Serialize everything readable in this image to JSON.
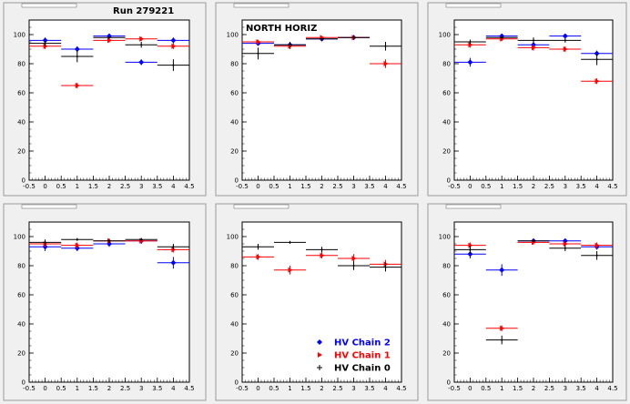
{
  "chart_data": [
    {
      "type": "scatter",
      "title": "",
      "annotation": "Run 279221",
      "xlim": [
        -0.5,
        4.5
      ],
      "ylim": [
        0,
        110
      ],
      "xticks": [
        "-0.5",
        "0",
        "0.5",
        "1",
        "1.5",
        "2",
        "2.5",
        "3",
        "3.5",
        "4",
        "4.5"
      ],
      "yticks": [
        "0",
        "20",
        "40",
        "60",
        "80",
        "100"
      ],
      "series": [
        {
          "key": "chain2",
          "values": [
            {
              "x": 0,
              "y": 96,
              "err": 2
            },
            {
              "x": 1,
              "y": 90,
              "err": 2
            },
            {
              "x": 2,
              "y": 99,
              "err": 1.5
            },
            {
              "x": 3,
              "y": 81,
              "err": 2
            },
            {
              "x": 4,
              "y": 96,
              "err": 2
            }
          ]
        },
        {
          "key": "chain1",
          "values": [
            {
              "x": 0,
              "y": 92,
              "err": 2
            },
            {
              "x": 1,
              "y": 65,
              "err": 2
            },
            {
              "x": 2,
              "y": 96,
              "err": 1.5
            },
            {
              "x": 3,
              "y": 97,
              "err": 1.5
            },
            {
              "x": 4,
              "y": 92,
              "err": 2
            }
          ]
        },
        {
          "key": "chain0",
          "values": [
            {
              "x": 0,
              "y": 94,
              "err": 2
            },
            {
              "x": 1,
              "y": 85,
              "err": 4
            },
            {
              "x": 2,
              "y": 98,
              "err": 1
            },
            {
              "x": 3,
              "y": 93,
              "err": 2
            },
            {
              "x": 4,
              "y": 79,
              "err": 4
            }
          ]
        }
      ]
    },
    {
      "type": "scatter",
      "title": "",
      "annotation": "NORTH HORIZ",
      "xlim": [
        -0.5,
        4.5
      ],
      "ylim": [
        0,
        110
      ],
      "xticks": [
        "-0.5",
        "0",
        "0.5",
        "1",
        "1.5",
        "2",
        "2.5",
        "3",
        "3.5",
        "4",
        "4.5"
      ],
      "yticks": [
        "0",
        "20",
        "40",
        "60",
        "80",
        "100"
      ],
      "series": [
        {
          "key": "chain2",
          "values": [
            {
              "x": 0,
              "y": 94,
              "err": 1.5
            },
            {
              "x": 1,
              "y": 93,
              "err": 1.5
            },
            {
              "x": 2,
              "y": 97,
              "err": 1
            },
            {
              "x": 3,
              "y": 98,
              "err": 1
            }
          ]
        },
        {
          "key": "chain1",
          "values": [
            {
              "x": 0,
              "y": 95,
              "err": 1.5
            },
            {
              "x": 1,
              "y": 92,
              "err": 2
            },
            {
              "x": 2,
              "y": 98,
              "err": 1
            },
            {
              "x": 3,
              "y": 98,
              "err": 1
            },
            {
              "x": 4,
              "y": 80,
              "err": 3
            }
          ]
        },
        {
          "key": "chain0",
          "values": [
            {
              "x": 0,
              "y": 87,
              "err": 4
            },
            {
              "x": 1,
              "y": 93,
              "err": 2
            },
            {
              "x": 2,
              "y": 97,
              "err": 1
            },
            {
              "x": 3,
              "y": 98,
              "err": 1
            },
            {
              "x": 4,
              "y": 92,
              "err": 3
            }
          ]
        }
      ]
    },
    {
      "type": "scatter",
      "title": "",
      "annotation": "",
      "xlim": [
        -0.5,
        4.5
      ],
      "ylim": [
        0,
        110
      ],
      "xticks": [
        "-0.5",
        "0",
        "0.5",
        "1",
        "1.5",
        "2",
        "2.5",
        "3",
        "3.5",
        "4",
        "4.5"
      ],
      "yticks": [
        "0",
        "20",
        "40",
        "60",
        "80",
        "100"
      ],
      "series": [
        {
          "key": "chain2",
          "values": [
            {
              "x": 0,
              "y": 81,
              "err": 3
            },
            {
              "x": 1,
              "y": 99,
              "err": 1
            },
            {
              "x": 2,
              "y": 93,
              "err": 2
            },
            {
              "x": 3,
              "y": 99,
              "err": 1
            },
            {
              "x": 4,
              "y": 87,
              "err": 2
            }
          ]
        },
        {
          "key": "chain1",
          "values": [
            {
              "x": 0,
              "y": 93,
              "err": 2
            },
            {
              "x": 1,
              "y": 97,
              "err": 1.5
            },
            {
              "x": 2,
              "y": 91,
              "err": 2
            },
            {
              "x": 3,
              "y": 90,
              "err": 2
            },
            {
              "x": 4,
              "y": 68,
              "err": 2
            }
          ]
        },
        {
          "key": "chain0",
          "values": [
            {
              "x": 0,
              "y": 95,
              "err": 1.5
            },
            {
              "x": 1,
              "y": 98,
              "err": 1
            },
            {
              "x": 2,
              "y": 96,
              "err": 2
            },
            {
              "x": 3,
              "y": 96,
              "err": 1.5
            },
            {
              "x": 4,
              "y": 83,
              "err": 4
            }
          ]
        }
      ]
    },
    {
      "type": "scatter",
      "title": "",
      "annotation": "",
      "xlim": [
        -0.5,
        4.5
      ],
      "ylim": [
        0,
        110
      ],
      "xticks": [
        "-0.5",
        "0",
        "0.5",
        "1",
        "1.5",
        "2",
        "2.5",
        "3",
        "3.5",
        "4",
        "4.5"
      ],
      "yticks": [
        "0",
        "20",
        "40",
        "60",
        "80",
        "100"
      ],
      "series": [
        {
          "key": "chain2",
          "values": [
            {
              "x": 0,
              "y": 93,
              "err": 3
            },
            {
              "x": 1,
              "y": 92,
              "err": 2
            },
            {
              "x": 2,
              "y": 95,
              "err": 2
            },
            {
              "x": 3,
              "y": 97,
              "err": 2
            },
            {
              "x": 4,
              "y": 82,
              "err": 4
            }
          ]
        },
        {
          "key": "chain1",
          "values": [
            {
              "x": 0,
              "y": 95,
              "err": 2
            },
            {
              "x": 1,
              "y": 94,
              "err": 2
            },
            {
              "x": 2,
              "y": 97,
              "err": 1.5
            },
            {
              "x": 3,
              "y": 97,
              "err": 1.5
            },
            {
              "x": 4,
              "y": 91,
              "err": 2
            }
          ]
        },
        {
          "key": "chain0",
          "values": [
            {
              "x": 0,
              "y": 96,
              "err": 2
            },
            {
              "x": 1,
              "y": 98,
              "err": 1
            },
            {
              "x": 2,
              "y": 97,
              "err": 1.5
            },
            {
              "x": 3,
              "y": 98,
              "err": 1
            },
            {
              "x": 4,
              "y": 93,
              "err": 2
            }
          ]
        }
      ]
    },
    {
      "type": "scatter",
      "title": "",
      "annotation": "",
      "xlim": [
        -0.5,
        4.5
      ],
      "ylim": [
        0,
        110
      ],
      "xticks": [
        "-0.5",
        "0",
        "0.5",
        "1",
        "1.5",
        "2",
        "2.5",
        "3",
        "3.5",
        "4",
        "4.5"
      ],
      "yticks": [
        "0",
        "20",
        "40",
        "60",
        "80",
        "100"
      ],
      "series": [
        {
          "key": "chain1",
          "values": [
            {
              "x": 0,
              "y": 86,
              "err": 2
            },
            {
              "x": 1,
              "y": 77,
              "err": 3
            },
            {
              "x": 2,
              "y": 87,
              "err": 2
            },
            {
              "x": 3,
              "y": 85,
              "err": 3
            },
            {
              "x": 4,
              "y": 81,
              "err": 3
            }
          ]
        },
        {
          "key": "chain0",
          "values": [
            {
              "x": 0,
              "y": 93,
              "err": 2
            },
            {
              "x": 1,
              "y": 96,
              "err": 1
            },
            {
              "x": 2,
              "y": 91,
              "err": 2
            },
            {
              "x": 3,
              "y": 80,
              "err": 3
            },
            {
              "x": 4,
              "y": 79,
              "err": 3
            }
          ]
        }
      ]
    },
    {
      "type": "scatter",
      "title": "",
      "annotation": "",
      "xlim": [
        -0.5,
        4.5
      ],
      "ylim": [
        0,
        110
      ],
      "xticks": [
        "-0.5",
        "0",
        "0.5",
        "1",
        "1.5",
        "2",
        "2.5",
        "3",
        "3.5",
        "4",
        "4.5"
      ],
      "yticks": [
        "0",
        "20",
        "40",
        "60",
        "80",
        "100"
      ],
      "series": [
        {
          "key": "chain2",
          "values": [
            {
              "x": 0,
              "y": 88,
              "err": 3
            },
            {
              "x": 1,
              "y": 77,
              "err": 4
            },
            {
              "x": 2,
              "y": 97,
              "err": 1.5
            },
            {
              "x": 3,
              "y": 97,
              "err": 1.5
            },
            {
              "x": 4,
              "y": 93,
              "err": 2
            }
          ]
        },
        {
          "key": "chain1",
          "values": [
            {
              "x": 0,
              "y": 94,
              "err": 2
            },
            {
              "x": 1,
              "y": 37,
              "err": 2
            },
            {
              "x": 2,
              "y": 96,
              "err": 1.5
            },
            {
              "x": 3,
              "y": 95,
              "err": 1.5
            },
            {
              "x": 4,
              "y": 94,
              "err": 2
            }
          ]
        },
        {
          "key": "chain0",
          "values": [
            {
              "x": 0,
              "y": 91,
              "err": 3
            },
            {
              "x": 1,
              "y": 29,
              "err": 3
            },
            {
              "x": 2,
              "y": 97,
              "err": 1
            },
            {
              "x": 3,
              "y": 92,
              "err": 2
            },
            {
              "x": 4,
              "y": 87,
              "err": 3
            }
          ]
        }
      ]
    }
  ],
  "legend": {
    "placement": "bottom-right of middle lower panel",
    "items": [
      {
        "key": "chain2",
        "label": "HV Chain 2",
        "color": "#0000ff",
        "marker": "diamond"
      },
      {
        "key": "chain1",
        "label": "HV Chain 1",
        "color": "#ff0000",
        "marker": "arrow"
      },
      {
        "key": "chain0",
        "label": "HV Chain 0",
        "color": "#000000",
        "marker": "cross"
      }
    ]
  },
  "colors": {
    "chain2": "#0000ff",
    "chain1": "#ff0000",
    "chain0": "#000000",
    "frame_bg": "#f0f0f0",
    "plot_bg": "#ffffff"
  }
}
